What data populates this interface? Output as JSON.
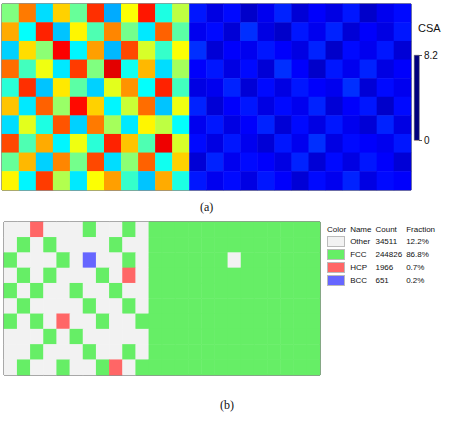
{
  "chart_data": [
    {
      "panel": "(a)",
      "type": "heatmap",
      "tick_labels": false,
      "cells": [
        [
          4.1,
          6.2,
          2.8,
          5.5,
          3.9,
          6.8,
          2.4,
          5.1,
          7.0,
          3.3,
          4.6,
          1.2,
          0.8,
          1.1,
          0.6,
          0.9,
          1.3,
          0.7,
          1.0,
          0.8,
          1.2,
          0.6,
          0.9,
          1.1
        ],
        [
          5.8,
          3.1,
          6.9,
          2.6,
          5.2,
          3.7,
          6.1,
          4.0,
          2.9,
          6.4,
          3.8,
          0.9,
          1.1,
          0.7,
          1.4,
          0.8,
          0.6,
          1.2,
          0.9,
          1.3,
          0.7,
          1.0,
          0.8,
          1.2
        ],
        [
          2.7,
          5.4,
          4.2,
          7.2,
          3.0,
          5.9,
          2.5,
          6.6,
          4.8,
          3.5,
          5.1,
          1.4,
          0.7,
          1.0,
          0.9,
          1.2,
          1.0,
          0.8,
          1.3,
          0.6,
          1.1,
          0.9,
          1.2,
          0.7
        ],
        [
          6.3,
          3.6,
          5.0,
          2.9,
          6.7,
          4.1,
          7.4,
          3.2,
          5.7,
          2.8,
          4.4,
          1.0,
          1.2,
          0.8,
          1.1,
          0.7,
          1.4,
          1.0,
          0.6,
          1.2,
          0.9,
          1.3,
          0.8,
          1.0
        ],
        [
          3.4,
          6.8,
          2.6,
          5.3,
          3.8,
          2.7,
          4.9,
          6.0,
          3.1,
          6.9,
          3.6,
          0.8,
          0.9,
          1.3,
          0.7,
          1.1,
          0.8,
          1.2,
          1.0,
          0.9,
          1.4,
          0.7,
          1.1,
          0.9
        ],
        [
          5.6,
          2.9,
          6.4,
          4.3,
          7.1,
          5.5,
          3.0,
          4.7,
          6.3,
          2.6,
          5.0,
          1.3,
          0.7,
          1.0,
          1.2,
          0.8,
          1.1,
          0.9,
          1.3,
          0.7,
          1.0,
          1.2,
          0.6,
          1.1
        ],
        [
          2.8,
          4.9,
          3.3,
          6.5,
          2.7,
          6.2,
          4.4,
          2.9,
          5.2,
          4.6,
          3.1,
          0.9,
          1.2,
          0.8,
          1.0,
          1.3,
          0.7,
          1.1,
          0.8,
          1.2,
          0.9,
          0.7,
          1.3,
          0.8
        ],
        [
          6.6,
          3.7,
          5.8,
          3.0,
          5.0,
          3.4,
          6.9,
          5.6,
          3.7,
          7.3,
          4.8,
          1.1,
          0.8,
          1.2,
          0.9,
          0.7,
          1.2,
          0.9,
          1.4,
          0.8,
          1.1,
          1.0,
          0.9,
          1.2
        ],
        [
          3.9,
          5.7,
          2.7,
          6.1,
          4.0,
          6.6,
          2.8,
          4.2,
          6.4,
          3.2,
          5.5,
          0.7,
          1.3,
          0.9,
          1.1,
          1.0,
          0.8,
          1.3,
          0.7,
          1.1,
          0.8,
          1.2,
          1.0,
          0.7
        ],
        [
          5.2,
          3.0,
          6.7,
          4.5,
          2.9,
          5.1,
          5.9,
          3.5,
          2.6,
          5.8,
          3.3,
          1.2,
          0.9,
          1.1,
          0.8,
          1.2,
          1.0,
          0.7,
          1.1,
          0.9,
          1.3,
          0.8,
          1.1,
          1.0
        ]
      ],
      "colorbar": {
        "label": "CSA",
        "range": [
          0,
          8.2
        ],
        "ticks": [
          0,
          8.2
        ]
      }
    },
    {
      "panel": "(b)",
      "type": "heatmap",
      "tick_labels": false,
      "cells": [
        [
          "Other",
          "Other",
          "HCP",
          "Other",
          "Other",
          "Other",
          "FCC",
          "Other",
          "Other",
          "FCC",
          "Other",
          "FCC",
          "FCC",
          "FCC",
          "FCC",
          "FCC",
          "FCC",
          "FCC",
          "FCC",
          "FCC",
          "FCC",
          "FCC",
          "FCC",
          "FCC"
        ],
        [
          "Other",
          "FCC",
          "Other",
          "FCC",
          "Other",
          "Other",
          "Other",
          "Other",
          "FCC",
          "Other",
          "Other",
          "FCC",
          "FCC",
          "FCC",
          "FCC",
          "FCC",
          "FCC",
          "FCC",
          "FCC",
          "FCC",
          "FCC",
          "FCC",
          "FCC",
          "FCC"
        ],
        [
          "FCC",
          "Other",
          "Other",
          "Other",
          "FCC",
          "Other",
          "BCC",
          "Other",
          "Other",
          "FCC",
          "Other",
          "FCC",
          "FCC",
          "FCC",
          "FCC",
          "FCC",
          "FCC",
          "Other",
          "FCC",
          "FCC",
          "FCC",
          "FCC",
          "FCC",
          "FCC"
        ],
        [
          "Other",
          "FCC",
          "Other",
          "FCC",
          "Other",
          "Other",
          "Other",
          "FCC",
          "Other",
          "HCP",
          "Other",
          "FCC",
          "FCC",
          "FCC",
          "FCC",
          "FCC",
          "FCC",
          "FCC",
          "FCC",
          "FCC",
          "FCC",
          "FCC",
          "FCC",
          "FCC"
        ],
        [
          "FCC",
          "Other",
          "FCC",
          "Other",
          "Other",
          "FCC",
          "Other",
          "Other",
          "FCC",
          "Other",
          "Other",
          "FCC",
          "FCC",
          "FCC",
          "FCC",
          "FCC",
          "FCC",
          "FCC",
          "FCC",
          "FCC",
          "FCC",
          "FCC",
          "FCC",
          "FCC"
        ],
        [
          "Other",
          "FCC",
          "Other",
          "Other",
          "Other",
          "Other",
          "FCC",
          "Other",
          "Other",
          "FCC",
          "Other",
          "FCC",
          "FCC",
          "FCC",
          "FCC",
          "FCC",
          "FCC",
          "FCC",
          "FCC",
          "FCC",
          "FCC",
          "FCC",
          "FCC",
          "FCC"
        ],
        [
          "FCC",
          "Other",
          "FCC",
          "Other",
          "HCP",
          "Other",
          "Other",
          "FCC",
          "Other",
          "Other",
          "FCC",
          "FCC",
          "FCC",
          "FCC",
          "FCC",
          "FCC",
          "FCC",
          "FCC",
          "FCC",
          "FCC",
          "FCC",
          "FCC",
          "FCC",
          "FCC"
        ],
        [
          "Other",
          "Other",
          "Other",
          "FCC",
          "Other",
          "FCC",
          "Other",
          "Other",
          "Other",
          "Other",
          "Other",
          "FCC",
          "FCC",
          "FCC",
          "FCC",
          "FCC",
          "FCC",
          "FCC",
          "FCC",
          "FCC",
          "FCC",
          "FCC",
          "FCC",
          "FCC"
        ],
        [
          "Other",
          "Other",
          "FCC",
          "Other",
          "Other",
          "Other",
          "FCC",
          "Other",
          "Other",
          "FCC",
          "Other",
          "FCC",
          "FCC",
          "FCC",
          "FCC",
          "FCC",
          "FCC",
          "FCC",
          "FCC",
          "FCC",
          "FCC",
          "FCC",
          "FCC",
          "FCC"
        ],
        [
          "Other",
          "FCC",
          "Other",
          "Other",
          "FCC",
          "Other",
          "Other",
          "FCC",
          "HCP",
          "Other",
          "FCC",
          "FCC",
          "FCC",
          "FCC",
          "FCC",
          "FCC",
          "FCC",
          "FCC",
          "FCC",
          "FCC",
          "FCC",
          "FCC",
          "FCC",
          "FCC"
        ]
      ],
      "legend_table": {
        "header": [
          "Color",
          "Name",
          "Count",
          "Fraction"
        ],
        "rows": [
          {
            "name": "Other",
            "color": "#f2f2f2",
            "count": 34511,
            "fraction": "12.2%"
          },
          {
            "name": "FCC",
            "color": "#66ee66",
            "count": 244826,
            "fraction": "86.8%"
          },
          {
            "name": "HCP",
            "color": "#ff6666",
            "count": 1966,
            "fraction": "0.7%"
          },
          {
            "name": "BCC",
            "color": "#6666ff",
            "count": 651,
            "fraction": "0.2%"
          }
        ]
      }
    }
  ]
}
